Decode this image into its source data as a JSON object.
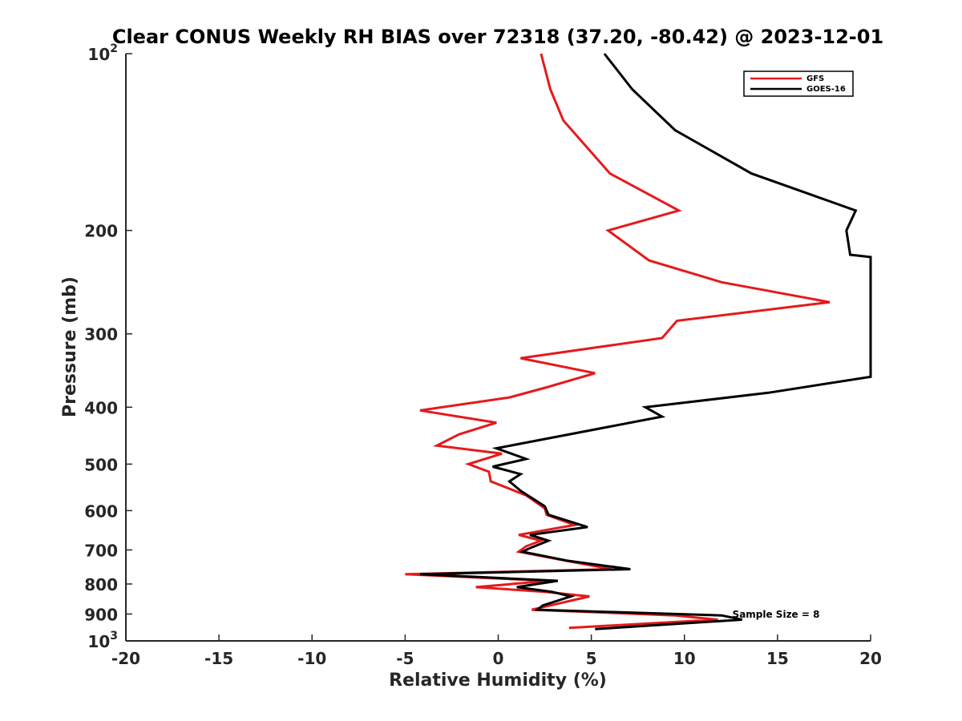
{
  "chart_data": {
    "type": "line",
    "title": "Clear CONUS Weekly RH BIAS over 72318 (37.20, -80.42) @ 2023-12-01",
    "xlabel": "Relative Humidity (%)",
    "ylabel": "Pressure (mb)",
    "xlim": [
      -20,
      20
    ],
    "ylim": [
      100,
      1000
    ],
    "y_scale": "log",
    "y_reversed": true,
    "grid": false,
    "legend_position": "top-right",
    "x_ticks": [
      "-20",
      "-15",
      "-10",
      "-5",
      "0",
      "5",
      "10",
      "15",
      "20"
    ],
    "x_tick_values": [
      -20,
      -15,
      -10,
      -5,
      0,
      5,
      10,
      15,
      20
    ],
    "y_ticks": [
      {
        "value": 100,
        "base": "10",
        "exp": "2"
      },
      {
        "value": 200,
        "base": "200",
        "exp": ""
      },
      {
        "value": 300,
        "base": "300",
        "exp": ""
      },
      {
        "value": 400,
        "base": "400",
        "exp": ""
      },
      {
        "value": 500,
        "base": "500",
        "exp": ""
      },
      {
        "value": 600,
        "base": "600",
        "exp": ""
      },
      {
        "value": 700,
        "base": "700",
        "exp": ""
      },
      {
        "value": 800,
        "base": "800",
        "exp": ""
      },
      {
        "value": 900,
        "base": "900",
        "exp": ""
      },
      {
        "value": 1000,
        "base": "10",
        "exp": "3"
      }
    ],
    "annotation": "Sample Size = 8",
    "series": [
      {
        "name": "GFS",
        "color": "#e41a1c",
        "points": [
          [
            2.3,
            100
          ],
          [
            2.8,
            115
          ],
          [
            3.5,
            130
          ],
          [
            6.0,
            160
          ],
          [
            9.7,
            185
          ],
          [
            5.9,
            200
          ],
          [
            8.1,
            225
          ],
          [
            12.0,
            245
          ],
          [
            17.8,
            265
          ],
          [
            9.6,
            285
          ],
          [
            8.8,
            305
          ],
          [
            1.2,
            330
          ],
          [
            5.2,
            350
          ],
          [
            2.6,
            370
          ],
          [
            0.6,
            385
          ],
          [
            -4.2,
            405
          ],
          [
            -0.1,
            425
          ],
          [
            -2.1,
            445
          ],
          [
            -3.3,
            465
          ],
          [
            0.2,
            480
          ],
          [
            -1.6,
            500
          ],
          [
            -0.5,
            515
          ],
          [
            -0.4,
            535
          ],
          [
            1.5,
            565
          ],
          [
            2.5,
            595
          ],
          [
            2.6,
            610
          ],
          [
            4.1,
            635
          ],
          [
            1.1,
            660
          ],
          [
            2.3,
            675
          ],
          [
            1.5,
            690
          ],
          [
            1.1,
            705
          ],
          [
            3.6,
            730
          ],
          [
            6.1,
            755
          ],
          [
            -5.0,
            770
          ],
          [
            2.7,
            790
          ],
          [
            -1.2,
            810
          ],
          [
            2.5,
            825
          ],
          [
            4.9,
            840
          ],
          [
            1.8,
            885
          ],
          [
            9.5,
            905
          ],
          [
            11.8,
            920
          ],
          [
            3.8,
            950
          ]
        ]
      },
      {
        "name": "GOES-16",
        "color": "#000000",
        "points": [
          [
            5.7,
            100
          ],
          [
            7.2,
            115
          ],
          [
            9.5,
            135
          ],
          [
            13.6,
            160
          ],
          [
            19.2,
            185
          ],
          [
            18.7,
            200
          ],
          [
            18.9,
            220
          ],
          [
            20.0,
            222
          ],
          [
            20.0,
            355
          ],
          [
            14.5,
            378
          ],
          [
            7.9,
            400
          ],
          [
            8.8,
            415
          ],
          [
            -0.1,
            470
          ],
          [
            1.5,
            490
          ],
          [
            -0.3,
            505
          ],
          [
            1.2,
            520
          ],
          [
            0.6,
            535
          ],
          [
            1.2,
            555
          ],
          [
            2.5,
            590
          ],
          [
            2.7,
            610
          ],
          [
            4.8,
            640
          ],
          [
            1.7,
            660
          ],
          [
            2.7,
            675
          ],
          [
            1.7,
            695
          ],
          [
            1.3,
            705
          ],
          [
            3.7,
            730
          ],
          [
            7.1,
            755
          ],
          [
            -4.2,
            770
          ],
          [
            3.2,
            790
          ],
          [
            1.0,
            810
          ],
          [
            2.9,
            825
          ],
          [
            3.9,
            840
          ],
          [
            2.4,
            870
          ],
          [
            2.1,
            885
          ],
          [
            12.0,
            905
          ],
          [
            13.1,
            920
          ],
          [
            5.2,
            955
          ]
        ]
      }
    ]
  }
}
